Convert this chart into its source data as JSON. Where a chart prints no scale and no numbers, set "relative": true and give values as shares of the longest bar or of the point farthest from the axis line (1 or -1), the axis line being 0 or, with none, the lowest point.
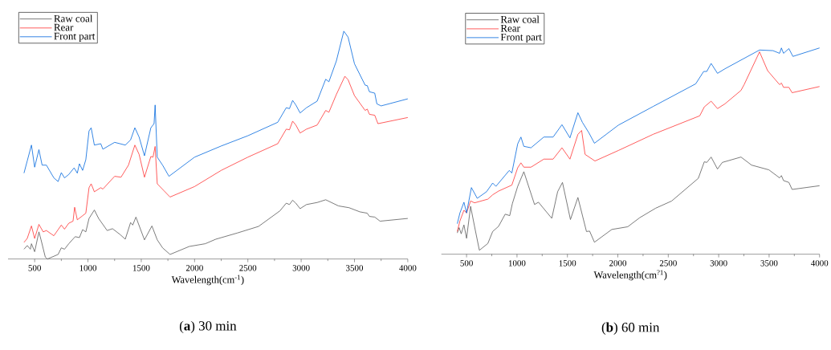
{
  "chart_data": [
    {
      "type": "line",
      "title": "(**a**) 30 min",
      "xlabel": "Wavelength(cm$^{-1}$)",
      "relative": true,
      "tick_labels": "x",
      "legend": "top left",
      "xlim": [
        250,
        4000
      ],
      "xticks": [
        500,
        1000,
        1500,
        2000,
        2500,
        3000,
        3500,
        4000
      ],
      "series": [
        {
          "name": "Raw coal",
          "color": "#5a5a5a",
          "x": [
            400,
            430,
            460,
            470,
            500,
            540,
            560,
            600,
            620,
            680,
            720,
            750,
            780,
            820,
            880,
            920,
            950,
            980,
            1010,
            1060,
            1100,
            1180,
            1230,
            1300,
            1350,
            1400,
            1420,
            1450,
            1530,
            1600,
            1650,
            1700,
            1770,
            1950,
            2100,
            2200,
            2400,
            2600,
            2800,
            2860,
            2890,
            2920,
            2950,
            2990,
            3050,
            3150,
            3230,
            3350,
            3450,
            3550,
            3620,
            3640,
            3690,
            3740,
            4000
          ],
          "values": [
            0.043,
            0.059,
            0.043,
            0.067,
            0.032,
            0.119,
            0.084,
            0.008,
            0,
            0.012,
            0.02,
            0.049,
            0.043,
            0.067,
            0.098,
            0.094,
            0.129,
            0.119,
            0.178,
            0.215,
            0.178,
            0.125,
            0.133,
            0.108,
            0.087,
            0.16,
            0.149,
            0.184,
            0.084,
            0.145,
            0.084,
            0.049,
            0.02,
            0.055,
            0.067,
            0.087,
            0.114,
            0.143,
            0.211,
            0.245,
            0.239,
            0.258,
            0.245,
            0.221,
            0.239,
            0.248,
            0.26,
            0.233,
            0.225,
            0.207,
            0.201,
            0.187,
            0.184,
            0.166,
            0.178
          ]
        },
        {
          "name": "Rear",
          "color": "#ff3333",
          "x": [
            400,
            430,
            470,
            500,
            540,
            580,
            610,
            680,
            750,
            780,
            820,
            860,
            875,
            900,
            950,
            980,
            1010,
            1030,
            1060,
            1120,
            1140,
            1250,
            1310,
            1380,
            1440,
            1480,
            1530,
            1590,
            1610,
            1630,
            1650,
            1710,
            1770,
            2000,
            2250,
            2500,
            2780,
            2860,
            2890,
            2920,
            2950,
            2990,
            3050,
            3150,
            3230,
            3260,
            3330,
            3410,
            3440,
            3500,
            3600,
            3620,
            3640,
            3690,
            3720,
            4000
          ],
          "values": [
            0.073,
            0.09,
            0.145,
            0.09,
            0.152,
            0.119,
            0.125,
            0.102,
            0.149,
            0.131,
            0.157,
            0.166,
            0.227,
            0.172,
            0.19,
            0.201,
            0.313,
            0.33,
            0.295,
            0.313,
            0.307,
            0.363,
            0.359,
            0.412,
            0.5,
            0.459,
            0.359,
            0.45,
            0.447,
            0.494,
            0.33,
            0.301,
            0.272,
            0.318,
            0.389,
            0.447,
            0.506,
            0.57,
            0.567,
            0.605,
            0.588,
            0.553,
            0.57,
            0.588,
            0.652,
            0.644,
            0.722,
            0.802,
            0.787,
            0.717,
            0.652,
            0.658,
            0.635,
            0.631,
            0.594,
            0.621
          ]
        },
        {
          "name": "Front part",
          "color": "#0066dd",
          "x": [
            400,
            430,
            470,
            500,
            540,
            570,
            610,
            680,
            720,
            750,
            780,
            820,
            870,
            900,
            920,
            950,
            980,
            1010,
            1030,
            1060,
            1120,
            1140,
            1250,
            1350,
            1400,
            1440,
            1480,
            1530,
            1590,
            1620,
            1630,
            1650,
            1700,
            1760,
            2000,
            2250,
            2500,
            2780,
            2860,
            2890,
            2920,
            2950,
            2990,
            3050,
            3150,
            3230,
            3260,
            3330,
            3400,
            3440,
            3500,
            3600,
            3620,
            3640,
            3690,
            3710,
            3750,
            4000
          ],
          "values": [
            0.377,
            0.43,
            0.5,
            0.403,
            0.48,
            0.412,
            0.412,
            0.356,
            0.34,
            0.379,
            0.356,
            0.371,
            0.4,
            0.377,
            0.418,
            0.389,
            0.436,
            0.562,
            0.576,
            0.5,
            0.506,
            0.482,
            0.512,
            0.5,
            0.523,
            0.576,
            0.535,
            0.453,
            0.576,
            0.594,
            0.676,
            0.447,
            0.412,
            0.363,
            0.447,
            0.496,
            0.541,
            0.6,
            0.664,
            0.66,
            0.696,
            0.676,
            0.641,
            0.664,
            0.693,
            0.789,
            0.778,
            0.869,
            1,
            0.974,
            0.857,
            0.763,
            0.761,
            0.734,
            0.728,
            0.681,
            0.672,
            0.703
          ]
        }
      ]
    },
    {
      "type": "line",
      "title": "(**b**) 60 min",
      "xlabel": "Wavelength(cm$^{?1}$)",
      "relative": true,
      "tick_labels": "x",
      "legend": "top left",
      "xlim": [
        250,
        4000
      ],
      "xticks": [
        500,
        1000,
        1500,
        2000,
        2500,
        3000,
        3500,
        4000
      ],
      "series": [
        {
          "name": "Raw coal",
          "color": "#5a5a5a",
          "x": [
            408,
            426,
            447,
            474,
            500,
            540,
            579,
            627,
            711,
            759,
            817,
            883,
            928,
            954,
            1007,
            1068,
            1174,
            1213,
            1345,
            1403,
            1451,
            1530,
            1604,
            1689,
            1720,
            1768,
            1940,
            2098,
            2217,
            2375,
            2534,
            2798,
            2857,
            2882,
            2925,
            2988,
            3036,
            3221,
            3326,
            3498,
            3604,
            3622,
            3643,
            3696,
            3728,
            4000
          ],
          "values": [
            0.103,
            0.129,
            0.099,
            0.142,
            0.077,
            0.232,
            0.135,
            0.019,
            0.052,
            0.11,
            0.135,
            0.194,
            0.187,
            0.245,
            0.329,
            0.4,
            0.241,
            0.252,
            0.174,
            0.303,
            0.348,
            0.168,
            0.275,
            0.11,
            0.112,
            0.058,
            0.12,
            0.133,
            0.177,
            0.223,
            0.258,
            0.368,
            0.448,
            0.445,
            0.471,
            0.413,
            0.445,
            0.471,
            0.432,
            0.409,
            0.37,
            0.381,
            0.357,
            0.348,
            0.314,
            0.332
          ]
        },
        {
          "name": "Rear",
          "color": "#ff3333",
          "x": [
            408,
            434,
            474,
            500,
            540,
            579,
            711,
            759,
            817,
            949,
            1007,
            1039,
            1068,
            1139,
            1266,
            1358,
            1446,
            1525,
            1604,
            1641,
            1675,
            1773,
            2006,
            2349,
            2812,
            2857,
            2925,
            2988,
            3062,
            3221,
            3252,
            3405,
            3485,
            3604,
            3622,
            3643,
            3696,
            3728,
            4000
          ],
          "values": [
            0.11,
            0.161,
            0.213,
            0.2,
            0.258,
            0.249,
            0.267,
            0.288,
            0.306,
            0.335,
            0.419,
            0.443,
            0.422,
            0.422,
            0.461,
            0.461,
            0.516,
            0.461,
            0.581,
            0.6,
            0.484,
            0.452,
            0.503,
            0.581,
            0.671,
            0.714,
            0.742,
            0.706,
            0.729,
            0.794,
            0.822,
            0.981,
            0.89,
            0.822,
            0.83,
            0.809,
            0.809,
            0.783,
            0.813
          ]
        },
        {
          "name": "Front part",
          "color": "#0066dd",
          "x": [
            408,
            434,
            474,
            500,
            548,
            606,
            698,
            759,
            791,
            923,
            949,
            1007,
            1039,
            1068,
            1139,
            1266,
            1358,
            1446,
            1525,
            1604,
            1649,
            1715,
            1768,
            2006,
            2349,
            2772,
            2851,
            2882,
            2925,
            2988,
            3062,
            3405,
            3538,
            3604,
            3622,
            3643,
            3696,
            3736,
            4000
          ],
          "values": [
            0.148,
            0.2,
            0.252,
            0.2,
            0.323,
            0.271,
            0.303,
            0.345,
            0.329,
            0.406,
            0.394,
            0.535,
            0.568,
            0.523,
            0.516,
            0.568,
            0.568,
            0.628,
            0.564,
            0.686,
            0.639,
            0.587,
            0.538,
            0.626,
            0.716,
            0.826,
            0.886,
            0.886,
            0.925,
            0.877,
            0.899,
            0.99,
            0.987,
            0.974,
            1,
            0.974,
            0.997,
            0.959,
            1
          ]
        }
      ]
    }
  ]
}
